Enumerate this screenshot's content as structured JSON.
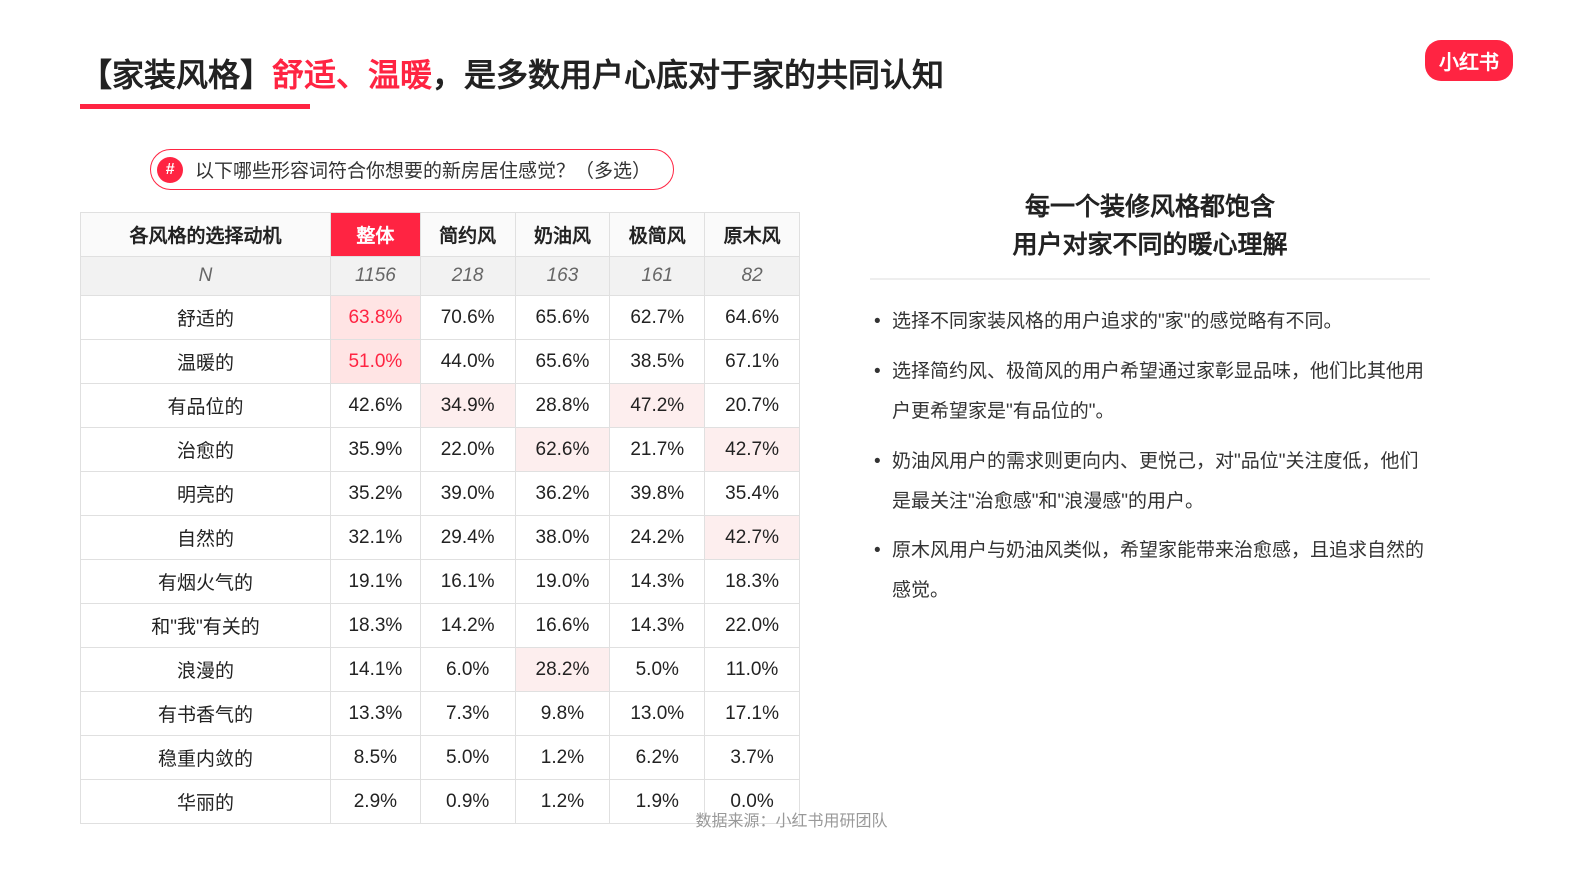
{
  "logo": "小红书",
  "title_prefix": "【家装风格】",
  "title_red": "舒适、温暖",
  "title_suffix": "，是多数用户心底对于家的共同认知",
  "pill_hash": "#",
  "pill_text": "以下哪些形容词符合你想要的新房居住感觉？（多选）",
  "table": {
    "header_label": "各风格的选择动机",
    "columns": [
      "整体",
      "简约风",
      "奶油风",
      "极简风",
      "原木风"
    ],
    "highlight_col_index": 0,
    "n_label": "N",
    "n_values": [
      "1156",
      "218",
      "163",
      "161",
      "82"
    ],
    "rows": [
      {
        "label": "舒适的",
        "cells": [
          {
            "v": "63.8%",
            "hl": "val"
          },
          {
            "v": "70.6%"
          },
          {
            "v": "65.6%"
          },
          {
            "v": "62.7%"
          },
          {
            "v": "64.6%"
          }
        ]
      },
      {
        "label": "温暖的",
        "cells": [
          {
            "v": "51.0%",
            "hl": "val"
          },
          {
            "v": "44.0%"
          },
          {
            "v": "65.6%"
          },
          {
            "v": "38.5%"
          },
          {
            "v": "67.1%"
          }
        ]
      },
      {
        "label": "有品位的",
        "cells": [
          {
            "v": "42.6%"
          },
          {
            "v": "34.9%",
            "hl": "soft"
          },
          {
            "v": "28.8%"
          },
          {
            "v": "47.2%",
            "hl": "soft"
          },
          {
            "v": "20.7%"
          }
        ]
      },
      {
        "label": "治愈的",
        "cells": [
          {
            "v": "35.9%"
          },
          {
            "v": "22.0%"
          },
          {
            "v": "62.6%",
            "hl": "soft"
          },
          {
            "v": "21.7%"
          },
          {
            "v": "42.7%",
            "hl": "soft"
          }
        ]
      },
      {
        "label": "明亮的",
        "cells": [
          {
            "v": "35.2%"
          },
          {
            "v": "39.0%"
          },
          {
            "v": "36.2%"
          },
          {
            "v": "39.8%"
          },
          {
            "v": "35.4%"
          }
        ]
      },
      {
        "label": "自然的",
        "cells": [
          {
            "v": "32.1%"
          },
          {
            "v": "29.4%"
          },
          {
            "v": "38.0%"
          },
          {
            "v": "24.2%"
          },
          {
            "v": "42.7%",
            "hl": "soft"
          }
        ]
      },
      {
        "label": "有烟火气的",
        "cells": [
          {
            "v": "19.1%"
          },
          {
            "v": "16.1%"
          },
          {
            "v": "19.0%"
          },
          {
            "v": "14.3%"
          },
          {
            "v": "18.3%"
          }
        ]
      },
      {
        "label": "和\"我\"有关的",
        "cells": [
          {
            "v": "18.3%"
          },
          {
            "v": "14.2%"
          },
          {
            "v": "16.6%"
          },
          {
            "v": "14.3%"
          },
          {
            "v": "22.0%"
          }
        ]
      },
      {
        "label": "浪漫的",
        "cells": [
          {
            "v": "14.1%"
          },
          {
            "v": "6.0%"
          },
          {
            "v": "28.2%",
            "hl": "soft"
          },
          {
            "v": "5.0%"
          },
          {
            "v": "11.0%"
          }
        ]
      },
      {
        "label": "有书香气的",
        "cells": [
          {
            "v": "13.3%"
          },
          {
            "v": "7.3%"
          },
          {
            "v": "9.8%"
          },
          {
            "v": "13.0%"
          },
          {
            "v": "17.1%"
          }
        ]
      },
      {
        "label": "稳重内敛的",
        "cells": [
          {
            "v": "8.5%"
          },
          {
            "v": "5.0%"
          },
          {
            "v": "1.2%"
          },
          {
            "v": "6.2%"
          },
          {
            "v": "3.7%"
          }
        ]
      },
      {
        "label": "华丽的",
        "cells": [
          {
            "v": "2.9%"
          },
          {
            "v": "0.9%"
          },
          {
            "v": "1.2%"
          },
          {
            "v": "1.9%"
          },
          {
            "v": "0.0%"
          }
        ]
      }
    ]
  },
  "right_title_line1": "每一个装修风格都饱含",
  "right_title_line2": "用户对家不同的暖心理解",
  "bullets": [
    "选择不同家装风格的用户追求的\"家\"的感觉略有不同。",
    "选择简约风、极简风的用户希望通过家彰显品味，他们比其他用户更希望家是\"有品位的\"。",
    "奶油风用户的需求则更向内、更悦己，对\"品位\"关注度低，他们是最关注\"治愈感\"和\"浪漫感\"的用户。",
    "原木风用户与奶油风类似，希望家能带来治愈感，且追求自然的感觉。"
  ],
  "data_source": "数据来源：小红书用研团队",
  "colors": {
    "brand_red": "#ff2442",
    "soft_highlight": "#fdeeee",
    "strong_highlight_bg": "#ffe4e4",
    "border": "#e0e0e0",
    "muted": "#999999"
  }
}
